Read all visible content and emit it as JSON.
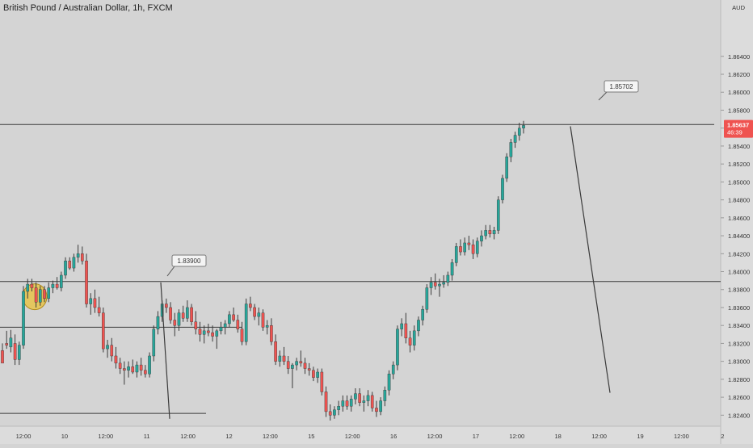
{
  "header": {
    "title": "British Pound / Australian Dollar, 1h, FXCM"
  },
  "colors": {
    "background": "#d4d4d4",
    "axis_bg": "#dcdcdc",
    "up": "#26a69a",
    "down": "#ef5350",
    "wick": "#3a3a3a",
    "line": "#3a3a3a",
    "price_badge": "#ef5350",
    "highlight": "#e6c34a"
  },
  "chart_data": {
    "type": "candlestick",
    "currency": "AUD",
    "ylim": [
      1.8234,
      1.8692
    ],
    "y_ticks": [
      "1.86400",
      "1.86200",
      "1.86000",
      "1.85800",
      "1.85600",
      "1.85400",
      "1.85200",
      "1.85000",
      "1.84800",
      "1.84600",
      "1.84400",
      "1.84200",
      "1.84000",
      "1.83800",
      "1.83600",
      "1.83400",
      "1.83200",
      "1.83000",
      "1.82800",
      "1.82600",
      "1.82400"
    ],
    "x_labels": [
      "12:00",
      "10",
      "12:00",
      "11",
      "12:00",
      "12",
      "12:00",
      "15",
      "12:00",
      "16",
      "12:00",
      "17",
      "12:00",
      "18",
      "12:00",
      "19",
      "12:00",
      "2"
    ],
    "current_price": {
      "value": "1.85637",
      "countdown": "46:39"
    },
    "horizontal_levels": [
      1.8564,
      1.8389,
      1.8338,
      1.8242
    ],
    "callouts": [
      {
        "label": "1.83900",
        "value": 1.839
      },
      {
        "label": "1.85702",
        "value": 1.85702
      }
    ],
    "trend_lines": [
      {
        "from": [
          1.8388,
          1.8236
        ],
        "note": "descending line near 11"
      },
      {
        "from": [
          1.8562,
          1.8265
        ],
        "note": "projected descending line 18 to 19"
      }
    ],
    "candles": [
      [
        1.8312,
        1.832,
        1.8302,
        1.8298
      ],
      [
        1.832,
        1.8334,
        1.8314,
        1.8318
      ],
      [
        1.8316,
        1.8335,
        1.831,
        1.8326
      ],
      [
        1.832,
        1.833,
        1.8296,
        1.8302
      ],
      [
        1.8302,
        1.8322,
        1.8296,
        1.8318
      ],
      [
        1.8318,
        1.8384,
        1.8314,
        1.8378
      ],
      [
        1.8378,
        1.8392,
        1.837,
        1.8386
      ],
      [
        1.8386,
        1.8392,
        1.8378,
        1.8382
      ],
      [
        1.8382,
        1.8388,
        1.836,
        1.8366
      ],
      [
        1.8366,
        1.8384,
        1.8362,
        1.838
      ],
      [
        1.838,
        1.8384,
        1.8366,
        1.837
      ],
      [
        1.837,
        1.8388,
        1.8366,
        1.8382
      ],
      [
        1.8382,
        1.839,
        1.8376,
        1.8386
      ],
      [
        1.8386,
        1.8394,
        1.838,
        1.8382
      ],
      [
        1.8382,
        1.84,
        1.8378,
        1.8396
      ],
      [
        1.8396,
        1.8416,
        1.8392,
        1.8412
      ],
      [
        1.8412,
        1.8416,
        1.8402,
        1.8404
      ],
      [
        1.8404,
        1.842,
        1.84,
        1.8416
      ],
      [
        1.8416,
        1.843,
        1.841,
        1.842
      ],
      [
        1.842,
        1.8428,
        1.8408,
        1.8412
      ],
      [
        1.8412,
        1.842,
        1.836,
        1.8364
      ],
      [
        1.8364,
        1.8376,
        1.8352,
        1.837
      ],
      [
        1.837,
        1.838,
        1.8354,
        1.836
      ],
      [
        1.836,
        1.8372,
        1.835,
        1.8354
      ],
      [
        1.8354,
        1.836,
        1.831,
        1.8314
      ],
      [
        1.8314,
        1.8324,
        1.8304,
        1.8318
      ],
      [
        1.8318,
        1.8326,
        1.83,
        1.8306
      ],
      [
        1.8306,
        1.8316,
        1.8292,
        1.8298
      ],
      [
        1.8298,
        1.8304,
        1.8286,
        1.8292
      ],
      [
        1.8292,
        1.83,
        1.8274,
        1.829
      ],
      [
        1.829,
        1.83,
        1.8282,
        1.8294
      ],
      [
        1.8294,
        1.8302,
        1.8286,
        1.8288
      ],
      [
        1.8288,
        1.83,
        1.8282,
        1.8296
      ],
      [
        1.8296,
        1.8304,
        1.8284,
        1.829
      ],
      [
        1.829,
        1.8296,
        1.8282,
        1.8286
      ],
      [
        1.8286,
        1.831,
        1.8282,
        1.8306
      ],
      [
        1.8306,
        1.834,
        1.83,
        1.8336
      ],
      [
        1.8336,
        1.8356,
        1.833,
        1.835
      ],
      [
        1.835,
        1.8368,
        1.8344,
        1.8364
      ],
      [
        1.8364,
        1.837,
        1.8354,
        1.836
      ],
      [
        1.836,
        1.8366,
        1.8342,
        1.8346
      ],
      [
        1.8346,
        1.8354,
        1.8328,
        1.834
      ],
      [
        1.834,
        1.8358,
        1.8334,
        1.8354
      ],
      [
        1.8354,
        1.8362,
        1.8344,
        1.8348
      ],
      [
        1.8348,
        1.8368,
        1.8344,
        1.836
      ],
      [
        1.836,
        1.8364,
        1.834,
        1.8344
      ],
      [
        1.8344,
        1.8356,
        1.833,
        1.8336
      ],
      [
        1.8336,
        1.8344,
        1.8322,
        1.833
      ],
      [
        1.833,
        1.834,
        1.832,
        1.8334
      ],
      [
        1.8334,
        1.8342,
        1.8328,
        1.8332
      ],
      [
        1.8332,
        1.834,
        1.8322,
        1.8328
      ],
      [
        1.8328,
        1.8336,
        1.8314,
        1.8334
      ],
      [
        1.8334,
        1.8344,
        1.833,
        1.8338
      ],
      [
        1.8338,
        1.8346,
        1.833,
        1.8342
      ],
      [
        1.8342,
        1.8356,
        1.8338,
        1.8352
      ],
      [
        1.8352,
        1.836,
        1.8344,
        1.8346
      ],
      [
        1.8346,
        1.8352,
        1.8332,
        1.8336
      ],
      [
        1.8336,
        1.8344,
        1.8318,
        1.8322
      ],
      [
        1.8322,
        1.837,
        1.8318,
        1.8364
      ],
      [
        1.8364,
        1.8372,
        1.8356,
        1.836
      ],
      [
        1.836,
        1.8364,
        1.8346,
        1.835
      ],
      [
        1.835,
        1.836,
        1.834,
        1.8354
      ],
      [
        1.8354,
        1.8358,
        1.8334,
        1.8338
      ],
      [
        1.8338,
        1.8346,
        1.833,
        1.834
      ],
      [
        1.834,
        1.8348,
        1.8318,
        1.8322
      ],
      [
        1.8322,
        1.833,
        1.8296,
        1.83
      ],
      [
        1.83,
        1.8312,
        1.8294,
        1.8306
      ],
      [
        1.8306,
        1.8316,
        1.8296,
        1.83
      ],
      [
        1.83,
        1.8306,
        1.8286,
        1.8292
      ],
      [
        1.8292,
        1.8298,
        1.827,
        1.8296
      ],
      [
        1.8296,
        1.8304,
        1.829,
        1.83
      ],
      [
        1.83,
        1.8312,
        1.8294,
        1.8298
      ],
      [
        1.8298,
        1.8304,
        1.8286,
        1.8292
      ],
      [
        1.8292,
        1.8298,
        1.8284,
        1.829
      ],
      [
        1.829,
        1.8294,
        1.8278,
        1.8282
      ],
      [
        1.8282,
        1.8292,
        1.8276,
        1.8288
      ],
      [
        1.8288,
        1.8292,
        1.8262,
        1.8266
      ],
      [
        1.8266,
        1.8272,
        1.8238,
        1.8244
      ],
      [
        1.8244,
        1.8252,
        1.8234,
        1.824
      ],
      [
        1.824,
        1.825,
        1.8236,
        1.8246
      ],
      [
        1.8246,
        1.8256,
        1.824,
        1.825
      ],
      [
        1.825,
        1.8262,
        1.8244,
        1.8256
      ],
      [
        1.8256,
        1.8262,
        1.8246,
        1.825
      ],
      [
        1.825,
        1.8262,
        1.8244,
        1.8258
      ],
      [
        1.8258,
        1.827,
        1.8252,
        1.8264
      ],
      [
        1.8264,
        1.827,
        1.825,
        1.8254
      ],
      [
        1.8254,
        1.8262,
        1.8244,
        1.8256
      ],
      [
        1.8256,
        1.8268,
        1.825,
        1.8262
      ],
      [
        1.8262,
        1.8266,
        1.8244,
        1.8248
      ],
      [
        1.8248,
        1.8256,
        1.8238,
        1.8244
      ],
      [
        1.8244,
        1.826,
        1.824,
        1.8256
      ],
      [
        1.8256,
        1.8272,
        1.825,
        1.8268
      ],
      [
        1.8268,
        1.829,
        1.8262,
        1.8286
      ],
      [
        1.8286,
        1.83,
        1.828,
        1.8296
      ],
      [
        1.8296,
        1.834,
        1.829,
        1.8336
      ],
      [
        1.8336,
        1.8348,
        1.8328,
        1.8342
      ],
      [
        1.8342,
        1.8354,
        1.832,
        1.8326
      ],
      [
        1.8326,
        1.8334,
        1.831,
        1.8318
      ],
      [
        1.8318,
        1.834,
        1.8312,
        1.8334
      ],
      [
        1.8334,
        1.835,
        1.8328,
        1.8346
      ],
      [
        1.8346,
        1.8362,
        1.834,
        1.8358
      ],
      [
        1.8358,
        1.8386,
        1.8354,
        1.8382
      ],
      [
        1.8382,
        1.8394,
        1.8374,
        1.8388
      ],
      [
        1.8388,
        1.8398,
        1.838,
        1.8384
      ],
      [
        1.8384,
        1.8392,
        1.8372,
        1.8386
      ],
      [
        1.8386,
        1.8396,
        1.8382,
        1.8388
      ],
      [
        1.8388,
        1.84,
        1.8384,
        1.8396
      ],
      [
        1.8396,
        1.8414,
        1.839,
        1.841
      ],
      [
        1.841,
        1.8432,
        1.8406,
        1.8428
      ],
      [
        1.8428,
        1.8436,
        1.8418,
        1.8422
      ],
      [
        1.8422,
        1.8438,
        1.8418,
        1.8432
      ],
      [
        1.8432,
        1.844,
        1.8424,
        1.843
      ],
      [
        1.843,
        1.8436,
        1.8414,
        1.842
      ],
      [
        1.842,
        1.8438,
        1.8416,
        1.8434
      ],
      [
        1.8434,
        1.8446,
        1.8428,
        1.844
      ],
      [
        1.844,
        1.8452,
        1.8436,
        1.8446
      ],
      [
        1.8446,
        1.8452,
        1.8438,
        1.8442
      ],
      [
        1.8442,
        1.845,
        1.8436,
        1.8446
      ],
      [
        1.8446,
        1.8484,
        1.8442,
        1.848
      ],
      [
        1.848,
        1.8508,
        1.8476,
        1.8504
      ],
      [
        1.8504,
        1.8532,
        1.85,
        1.8528
      ],
      [
        1.8528,
        1.8548,
        1.8522,
        1.8544
      ],
      [
        1.8544,
        1.8556,
        1.8538,
        1.8552
      ],
      [
        1.8552,
        1.8566,
        1.8546,
        1.856
      ],
      [
        1.856,
        1.8568,
        1.8554,
        1.8563
      ]
    ]
  }
}
